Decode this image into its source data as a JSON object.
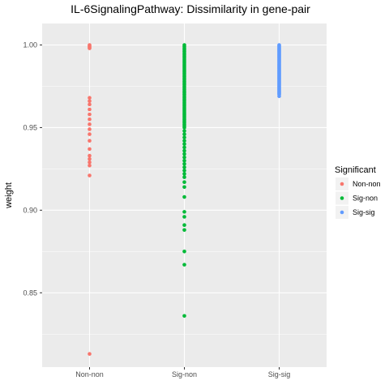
{
  "chart_data": {
    "type": "scatter",
    "title": "IL-6SignalingPathway: Dissimilarity in gene-pair",
    "xlabel": "",
    "ylabel": "weight",
    "categories": [
      "Non-non",
      "Sig-non",
      "Sig-sig"
    ],
    "ylim": [
      0.805,
      1.013
    ],
    "yticks": [
      0.85,
      0.9,
      0.95,
      1.0
    ],
    "ytick_labels": [
      "0.85",
      "0.90",
      "0.95",
      "1.00"
    ],
    "grid": true,
    "legend": {
      "title": "Significant",
      "placement": "right",
      "entries": [
        "Non-non",
        "Sig-non",
        "Sig-sig"
      ]
    },
    "colors": {
      "Non-non": "#F8766D",
      "Sig-non": "#00BA38",
      "Sig-sig": "#619CFF",
      "panel": "#EBEBEB",
      "grid": "#FFFFFF"
    },
    "series": [
      {
        "name": "Non-non",
        "values": [
          1.0,
          0.9995,
          0.999,
          0.9985,
          0.998,
          0.968,
          0.966,
          0.964,
          0.961,
          0.958,
          0.955,
          0.952,
          0.949,
          0.946,
          0.942,
          0.937,
          0.933,
          0.931,
          0.929,
          0.927,
          0.921,
          0.813
        ]
      },
      {
        "name": "Sig-non",
        "values": [
          1.0,
          0.999,
          0.998,
          0.997,
          0.996,
          0.995,
          0.994,
          0.993,
          0.992,
          0.991,
          0.99,
          0.989,
          0.988,
          0.987,
          0.986,
          0.985,
          0.984,
          0.983,
          0.982,
          0.981,
          0.98,
          0.979,
          0.978,
          0.977,
          0.976,
          0.975,
          0.974,
          0.973,
          0.972,
          0.971,
          0.97,
          0.969,
          0.968,
          0.967,
          0.966,
          0.965,
          0.964,
          0.963,
          0.962,
          0.961,
          0.96,
          0.959,
          0.958,
          0.957,
          0.956,
          0.955,
          0.954,
          0.953,
          0.952,
          0.951,
          0.95,
          0.948,
          0.946,
          0.944,
          0.942,
          0.94,
          0.938,
          0.936,
          0.934,
          0.932,
          0.93,
          0.928,
          0.926,
          0.924,
          0.922,
          0.92,
          0.917,
          0.914,
          0.908,
          0.899,
          0.896,
          0.891,
          0.888,
          0.875,
          0.867,
          0.836
        ]
      },
      {
        "name": "Sig-sig",
        "values": [
          1.0,
          0.9995,
          0.999,
          0.9985,
          0.998,
          0.9975,
          0.997,
          0.9965,
          0.996,
          0.9955,
          0.995,
          0.9945,
          0.994,
          0.9935,
          0.993,
          0.9925,
          0.992,
          0.9915,
          0.991,
          0.9905,
          0.99,
          0.9895,
          0.989,
          0.9885,
          0.988,
          0.9875,
          0.987,
          0.9865,
          0.986,
          0.9855,
          0.985,
          0.9845,
          0.984,
          0.9835,
          0.983,
          0.9825,
          0.982,
          0.9815,
          0.981,
          0.9805,
          0.98,
          0.9795,
          0.979,
          0.9785,
          0.978,
          0.9775,
          0.977,
          0.9765,
          0.976,
          0.9755,
          0.975,
          0.9745,
          0.974,
          0.9735,
          0.973,
          0.9725,
          0.972,
          0.9715,
          0.971,
          0.9705,
          0.97,
          0.969
        ]
      }
    ]
  }
}
